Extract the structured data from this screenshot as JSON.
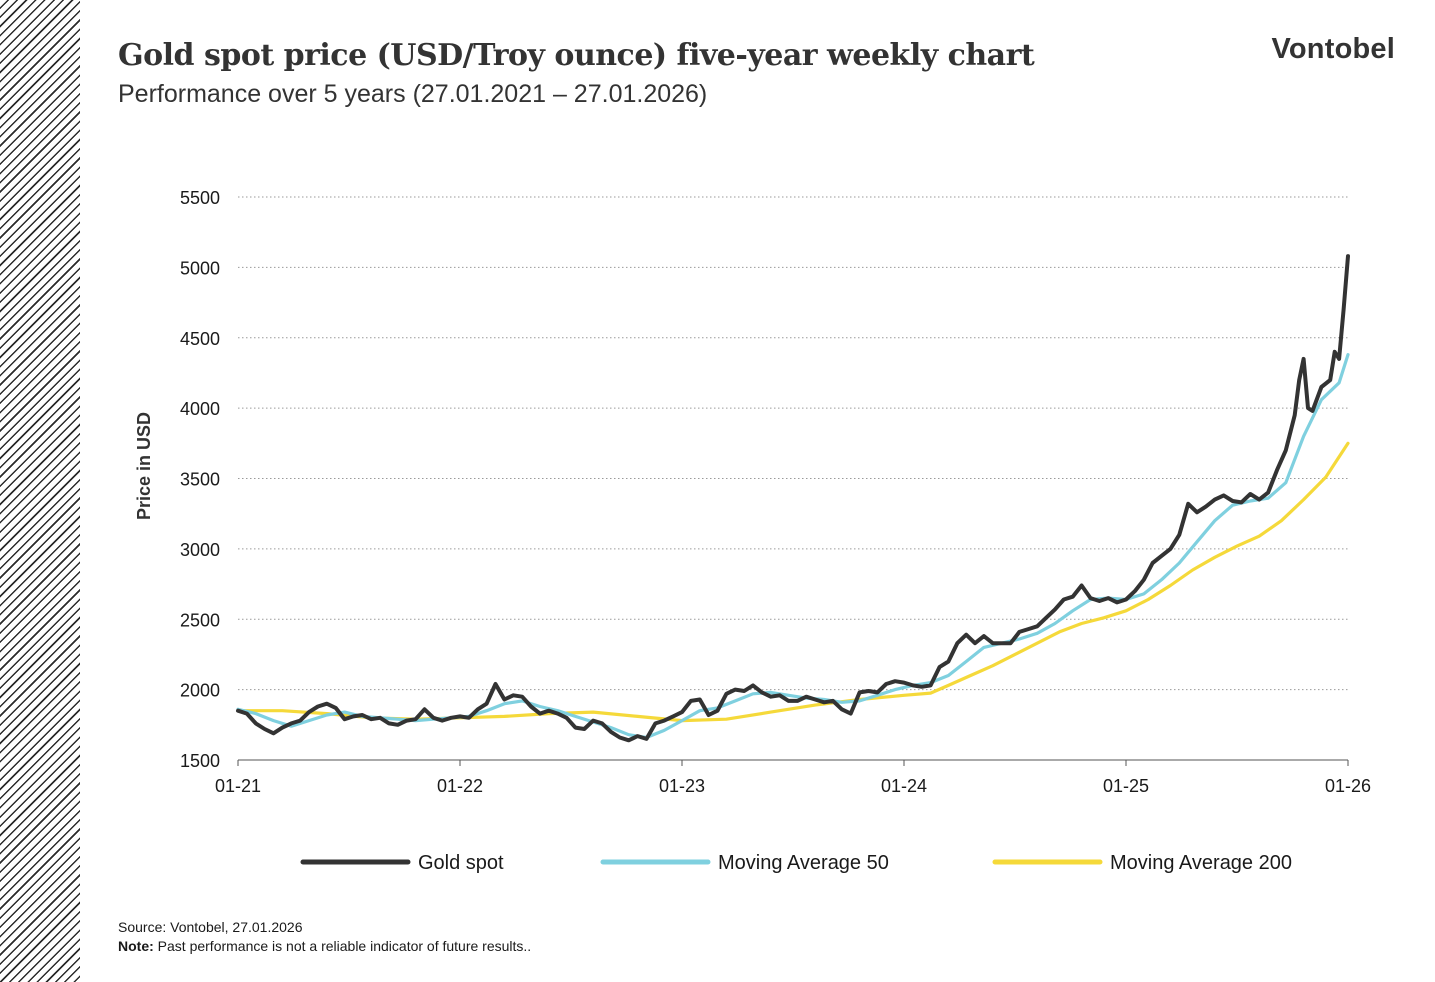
{
  "header": {
    "title": "Gold spot price (USD/Troy ounce) five-year weekly chart",
    "subtitle": "Performance over 5 years (27.01.2021 – 27.01.2026)",
    "brand": "Vontobel"
  },
  "footer": {
    "source": "Source: Vontobel, 27.01.2026",
    "note_label": "Note:",
    "note_text": " Past performance is not a reliable indicator of future results.."
  },
  "chart_data": {
    "type": "line",
    "title": "Gold spot price (USD/Troy ounce) five-year weekly chart",
    "ylabel": "Price in USD",
    "xlabel": "",
    "ylim": [
      1500,
      5500
    ],
    "yticks": [
      1500,
      2000,
      2500,
      3000,
      3500,
      4000,
      4500,
      5000,
      5500
    ],
    "xlim": [
      2021.0,
      2026.0
    ],
    "xticks": [
      {
        "value": 2021,
        "label": "01-21"
      },
      {
        "value": 2022,
        "label": "01-22"
      },
      {
        "value": 2023,
        "label": "01-23"
      },
      {
        "value": 2024,
        "label": "01-24"
      },
      {
        "value": 2025,
        "label": "01-25"
      },
      {
        "value": 2026,
        "label": "01-26"
      }
    ],
    "grid": "horizontal-dotted",
    "legend_position": "bottom",
    "series": [
      {
        "name": "Gold spot",
        "color": "#333333",
        "points": [
          [
            2021.0,
            1850
          ],
          [
            2021.04,
            1830
          ],
          [
            2021.08,
            1760
          ],
          [
            2021.12,
            1720
          ],
          [
            2021.16,
            1690
          ],
          [
            2021.2,
            1730
          ],
          [
            2021.24,
            1760
          ],
          [
            2021.28,
            1780
          ],
          [
            2021.32,
            1840
          ],
          [
            2021.36,
            1880
          ],
          [
            2021.4,
            1900
          ],
          [
            2021.44,
            1870
          ],
          [
            2021.48,
            1790
          ],
          [
            2021.52,
            1810
          ],
          [
            2021.56,
            1820
          ],
          [
            2021.6,
            1790
          ],
          [
            2021.64,
            1800
          ],
          [
            2021.68,
            1760
          ],
          [
            2021.72,
            1750
          ],
          [
            2021.76,
            1780
          ],
          [
            2021.8,
            1790
          ],
          [
            2021.84,
            1860
          ],
          [
            2021.88,
            1800
          ],
          [
            2021.92,
            1780
          ],
          [
            2021.96,
            1800
          ],
          [
            2022.0,
            1810
          ],
          [
            2022.04,
            1800
          ],
          [
            2022.08,
            1860
          ],
          [
            2022.12,
            1900
          ],
          [
            2022.16,
            2040
          ],
          [
            2022.2,
            1930
          ],
          [
            2022.24,
            1960
          ],
          [
            2022.28,
            1950
          ],
          [
            2022.32,
            1880
          ],
          [
            2022.36,
            1830
          ],
          [
            2022.4,
            1850
          ],
          [
            2022.44,
            1830
          ],
          [
            2022.48,
            1800
          ],
          [
            2022.52,
            1730
          ],
          [
            2022.56,
            1720
          ],
          [
            2022.6,
            1780
          ],
          [
            2022.64,
            1760
          ],
          [
            2022.68,
            1700
          ],
          [
            2022.72,
            1660
          ],
          [
            2022.76,
            1640
          ],
          [
            2022.8,
            1670
          ],
          [
            2022.84,
            1650
          ],
          [
            2022.88,
            1760
          ],
          [
            2022.92,
            1780
          ],
          [
            2022.96,
            1810
          ],
          [
            2023.0,
            1840
          ],
          [
            2023.04,
            1920
          ],
          [
            2023.08,
            1930
          ],
          [
            2023.12,
            1820
          ],
          [
            2023.16,
            1850
          ],
          [
            2023.2,
            1970
          ],
          [
            2023.24,
            2000
          ],
          [
            2023.28,
            1990
          ],
          [
            2023.32,
            2030
          ],
          [
            2023.36,
            1980
          ],
          [
            2023.4,
            1950
          ],
          [
            2023.44,
            1960
          ],
          [
            2023.48,
            1920
          ],
          [
            2023.52,
            1920
          ],
          [
            2023.56,
            1950
          ],
          [
            2023.6,
            1930
          ],
          [
            2023.64,
            1910
          ],
          [
            2023.68,
            1920
          ],
          [
            2023.72,
            1860
          ],
          [
            2023.76,
            1830
          ],
          [
            2023.8,
            1980
          ],
          [
            2023.84,
            1990
          ],
          [
            2023.88,
            1980
          ],
          [
            2023.92,
            2040
          ],
          [
            2023.96,
            2060
          ],
          [
            2024.0,
            2050
          ],
          [
            2024.04,
            2030
          ],
          [
            2024.08,
            2020
          ],
          [
            2024.12,
            2030
          ],
          [
            2024.16,
            2160
          ],
          [
            2024.2,
            2200
          ],
          [
            2024.24,
            2330
          ],
          [
            2024.28,
            2390
          ],
          [
            2024.32,
            2330
          ],
          [
            2024.36,
            2380
          ],
          [
            2024.4,
            2330
          ],
          [
            2024.44,
            2330
          ],
          [
            2024.48,
            2330
          ],
          [
            2024.52,
            2410
          ],
          [
            2024.56,
            2430
          ],
          [
            2024.6,
            2450
          ],
          [
            2024.64,
            2510
          ],
          [
            2024.68,
            2570
          ],
          [
            2024.72,
            2640
          ],
          [
            2024.76,
            2660
          ],
          [
            2024.8,
            2740
          ],
          [
            2024.84,
            2650
          ],
          [
            2024.88,
            2630
          ],
          [
            2024.92,
            2650
          ],
          [
            2024.96,
            2620
          ],
          [
            2025.0,
            2640
          ],
          [
            2025.04,
            2700
          ],
          [
            2025.08,
            2780
          ],
          [
            2025.12,
            2900
          ],
          [
            2025.16,
            2950
          ],
          [
            2025.2,
            3000
          ],
          [
            2025.24,
            3100
          ],
          [
            2025.28,
            3320
          ],
          [
            2025.32,
            3260
          ],
          [
            2025.36,
            3300
          ],
          [
            2025.4,
            3350
          ],
          [
            2025.44,
            3380
          ],
          [
            2025.48,
            3340
          ],
          [
            2025.52,
            3330
          ],
          [
            2025.56,
            3390
          ],
          [
            2025.6,
            3350
          ],
          [
            2025.64,
            3400
          ],
          [
            2025.68,
            3560
          ],
          [
            2025.72,
            3700
          ],
          [
            2025.76,
            3950
          ],
          [
            2025.78,
            4200
          ],
          [
            2025.8,
            4350
          ],
          [
            2025.82,
            4000
          ],
          [
            2025.84,
            3980
          ],
          [
            2025.88,
            4150
          ],
          [
            2025.92,
            4200
          ],
          [
            2025.94,
            4400
          ],
          [
            2025.96,
            4350
          ],
          [
            2025.98,
            4700
          ],
          [
            2026.0,
            5080
          ]
        ]
      },
      {
        "name": "Moving Average 50",
        "color": "#7fd0df",
        "points": [
          [
            2021.0,
            1860
          ],
          [
            2021.08,
            1830
          ],
          [
            2021.16,
            1780
          ],
          [
            2021.24,
            1740
          ],
          [
            2021.32,
            1780
          ],
          [
            2021.4,
            1820
          ],
          [
            2021.48,
            1840
          ],
          [
            2021.56,
            1810
          ],
          [
            2021.64,
            1800
          ],
          [
            2021.72,
            1790
          ],
          [
            2021.8,
            1780
          ],
          [
            2021.88,
            1790
          ],
          [
            2021.96,
            1800
          ],
          [
            2022.04,
            1810
          ],
          [
            2022.12,
            1850
          ],
          [
            2022.2,
            1900
          ],
          [
            2022.28,
            1920
          ],
          [
            2022.36,
            1880
          ],
          [
            2022.44,
            1850
          ],
          [
            2022.52,
            1810
          ],
          [
            2022.6,
            1770
          ],
          [
            2022.68,
            1730
          ],
          [
            2022.76,
            1680
          ],
          [
            2022.84,
            1660
          ],
          [
            2022.92,
            1710
          ],
          [
            2023.0,
            1780
          ],
          [
            2023.08,
            1850
          ],
          [
            2023.16,
            1870
          ],
          [
            2023.24,
            1920
          ],
          [
            2023.32,
            1970
          ],
          [
            2023.4,
            1980
          ],
          [
            2023.48,
            1960
          ],
          [
            2023.56,
            1940
          ],
          [
            2023.64,
            1930
          ],
          [
            2023.72,
            1910
          ],
          [
            2023.8,
            1920
          ],
          [
            2023.88,
            1960
          ],
          [
            2023.96,
            2000
          ],
          [
            2024.04,
            2030
          ],
          [
            2024.12,
            2050
          ],
          [
            2024.2,
            2100
          ],
          [
            2024.28,
            2200
          ],
          [
            2024.36,
            2300
          ],
          [
            2024.44,
            2330
          ],
          [
            2024.52,
            2360
          ],
          [
            2024.6,
            2400
          ],
          [
            2024.68,
            2470
          ],
          [
            2024.76,
            2560
          ],
          [
            2024.84,
            2640
          ],
          [
            2024.92,
            2650
          ],
          [
            2025.0,
            2640
          ],
          [
            2025.08,
            2680
          ],
          [
            2025.16,
            2780
          ],
          [
            2025.24,
            2900
          ],
          [
            2025.32,
            3050
          ],
          [
            2025.4,
            3200
          ],
          [
            2025.48,
            3310
          ],
          [
            2025.56,
            3340
          ],
          [
            2025.64,
            3360
          ],
          [
            2025.72,
            3470
          ],
          [
            2025.8,
            3800
          ],
          [
            2025.88,
            4060
          ],
          [
            2025.96,
            4180
          ],
          [
            2026.0,
            4380
          ]
        ]
      },
      {
        "name": "Moving Average 200",
        "color": "#f5d93a",
        "points": [
          [
            2021.0,
            1850
          ],
          [
            2021.2,
            1850
          ],
          [
            2021.4,
            1830
          ],
          [
            2021.6,
            1800
          ],
          [
            2021.8,
            1790
          ],
          [
            2022.0,
            1800
          ],
          [
            2022.2,
            1810
          ],
          [
            2022.4,
            1830
          ],
          [
            2022.6,
            1840
          ],
          [
            2022.8,
            1810
          ],
          [
            2023.0,
            1780
          ],
          [
            2023.2,
            1790
          ],
          [
            2023.4,
            1840
          ],
          [
            2023.6,
            1890
          ],
          [
            2023.8,
            1930
          ],
          [
            2024.0,
            1960
          ],
          [
            2024.12,
            1975
          ],
          [
            2024.2,
            2030
          ],
          [
            2024.3,
            2100
          ],
          [
            2024.4,
            2170
          ],
          [
            2024.5,
            2250
          ],
          [
            2024.6,
            2330
          ],
          [
            2024.7,
            2410
          ],
          [
            2024.8,
            2470
          ],
          [
            2024.9,
            2510
          ],
          [
            2025.0,
            2560
          ],
          [
            2025.1,
            2640
          ],
          [
            2025.2,
            2740
          ],
          [
            2025.3,
            2850
          ],
          [
            2025.4,
            2940
          ],
          [
            2025.5,
            3020
          ],
          [
            2025.6,
            3090
          ],
          [
            2025.7,
            3200
          ],
          [
            2025.8,
            3350
          ],
          [
            2025.9,
            3510
          ],
          [
            2026.0,
            3750
          ]
        ]
      }
    ]
  }
}
